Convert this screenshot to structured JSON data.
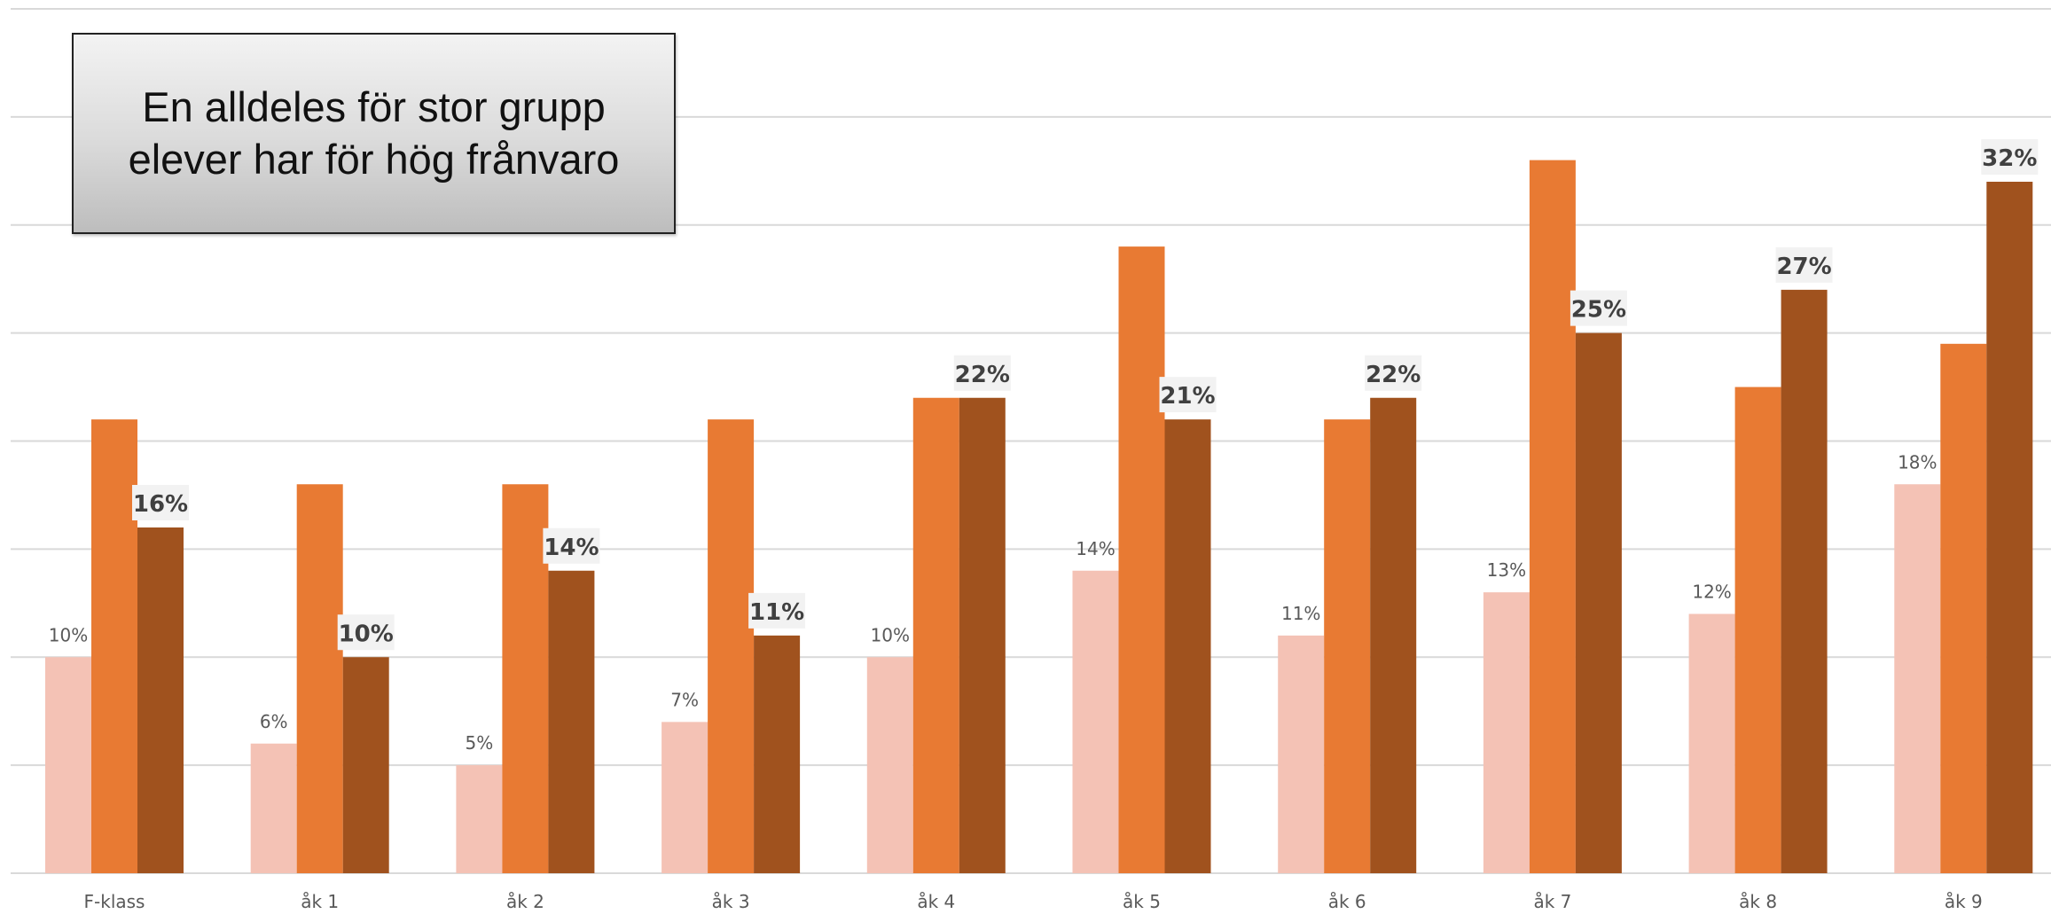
{
  "callout": {
    "text": "En alldeles för stor grupp\nelever har för hög frånvaro"
  },
  "colors": {
    "series_1": "#F4C2B5",
    "series_2": "#E87A33",
    "series_3": "#A0521E",
    "gridline": "#d9d9d9",
    "axis_label": "#595959",
    "data_label": "#595959",
    "bold_label": "#404040",
    "bold_label_bg": "#f2f2f2"
  },
  "chart_data": {
    "type": "bar",
    "title": "",
    "xlabel": "",
    "ylabel": "",
    "ylim": [
      0,
      40
    ],
    "grid": true,
    "legend": "none",
    "categories": [
      "F-klass",
      "åk 1",
      "åk 2",
      "åk 3",
      "åk 4",
      "åk 5",
      "åk 6",
      "åk 7",
      "åk 8",
      "åk 9"
    ],
    "series": [
      {
        "values": [
          10,
          6,
          5,
          7,
          10,
          14,
          11,
          13,
          12,
          18
        ],
        "labels": [
          "10%",
          "6%",
          "5%",
          "7%",
          "10%",
          "14%",
          "11%",
          "13%",
          "12%",
          "18%"
        ]
      },
      {
        "values": [
          21,
          18,
          18,
          21,
          22,
          29,
          21,
          33,
          22.5,
          24.5
        ],
        "labels": [
          "",
          "",
          "",
          "",
          "",
          "",
          "",
          "",
          "",
          ""
        ]
      },
      {
        "values": [
          16,
          10,
          14,
          11,
          22,
          21,
          22,
          25,
          27,
          32
        ],
        "labels": [
          "16%",
          "10%",
          "14%",
          "11%",
          "22%",
          "21%",
          "22%",
          "25%",
          "27%",
          "32%"
        ]
      }
    ]
  }
}
